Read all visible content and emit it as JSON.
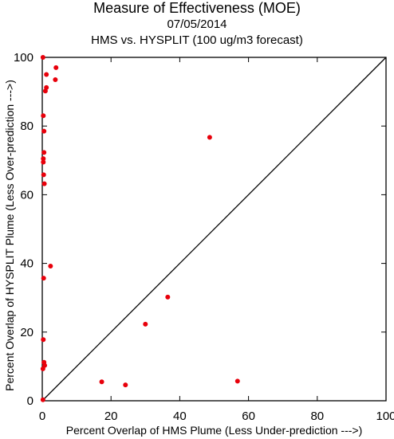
{
  "chart_data": {
    "type": "scatter",
    "title": "Measure of Effectiveness (MOE)",
    "subtitle": "07/05/2014",
    "subtitle2": "HMS vs. HYSPLIT  (100 ug/m3 forecast)",
    "xlabel": "Percent Overlap of HMS Plume (Less Under-prediction --->)",
    "ylabel": "Percent Overlap of HYSPLIT Plume (Less Over-prediction --->)",
    "xlim": [
      0,
      100
    ],
    "ylim": [
      0,
      100
    ],
    "xticks": [
      "0",
      "20",
      "40",
      "60",
      "80",
      "100"
    ],
    "yticks": [
      "0",
      "20",
      "40",
      "60",
      "80",
      "100"
    ],
    "grid": false,
    "reference_line": "y = x",
    "point_color": "#e8000b",
    "series": [
      {
        "points": [
          [
            0.2,
            100
          ],
          [
            1.2,
            95
          ],
          [
            4.0,
            97
          ],
          [
            3.8,
            93.5
          ],
          [
            1.2,
            91.2
          ],
          [
            0.9,
            90.2
          ],
          [
            0.3,
            83
          ],
          [
            0.5,
            78.5
          ],
          [
            0.5,
            72.3
          ],
          [
            0.3,
            70.5
          ],
          [
            0.3,
            69.5
          ],
          [
            0.4,
            65.8
          ],
          [
            0.6,
            63.2
          ],
          [
            2.4,
            39.2
          ],
          [
            0.4,
            35.7
          ],
          [
            0.3,
            17.8
          ],
          [
            0.5,
            11.2
          ],
          [
            0.7,
            10.3
          ],
          [
            0.2,
            9.3
          ],
          [
            0.2,
            0.3
          ],
          [
            48.7,
            76.7
          ],
          [
            36.5,
            30.2
          ],
          [
            30.0,
            22.3
          ],
          [
            17.3,
            5.5
          ],
          [
            24.2,
            4.6
          ],
          [
            56.8,
            5.7
          ]
        ]
      }
    ]
  }
}
